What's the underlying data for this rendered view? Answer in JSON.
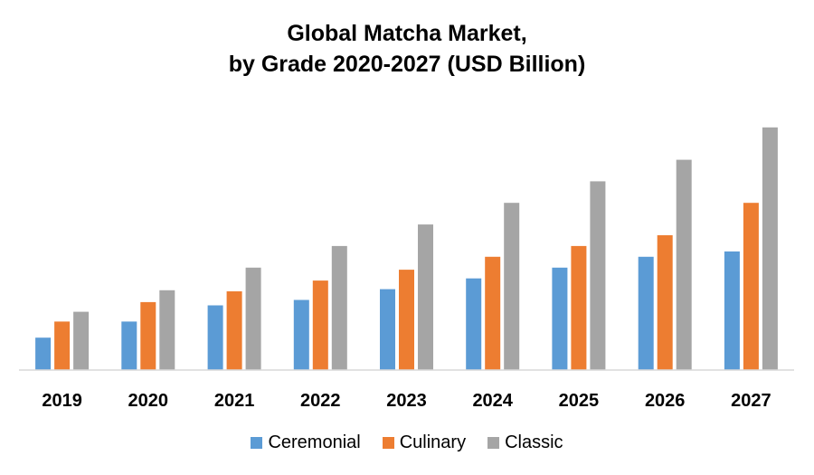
{
  "chart_data": {
    "type": "bar",
    "title_line1": "Global Matcha Market,",
    "title_line2": "by Grade 2020-2027 (USD Billion)",
    "categories": [
      "2019",
      "2020",
      "2021",
      "2022",
      "2023",
      "2024",
      "2025",
      "2026",
      "2027"
    ],
    "series": [
      {
        "name": "Ceremonial",
        "color": "#5B9BD5",
        "values": [
          3.0,
          4.5,
          6.0,
          6.5,
          7.5,
          8.5,
          9.5,
          10.5,
          11.0
        ]
      },
      {
        "name": "Culinary",
        "color": "#ED7D31",
        "values": [
          4.5,
          6.3,
          7.3,
          8.3,
          9.3,
          10.5,
          11.5,
          12.5,
          15.5
        ]
      },
      {
        "name": "Classic",
        "color": "#A5A5A5",
        "values": [
          5.4,
          7.4,
          9.5,
          11.5,
          13.5,
          15.5,
          17.5,
          19.5,
          22.5
        ]
      }
    ],
    "xlabel": "",
    "ylabel": "",
    "ylim": [
      0,
      25
    ],
    "grid": false,
    "legend": "bottom-center"
  }
}
